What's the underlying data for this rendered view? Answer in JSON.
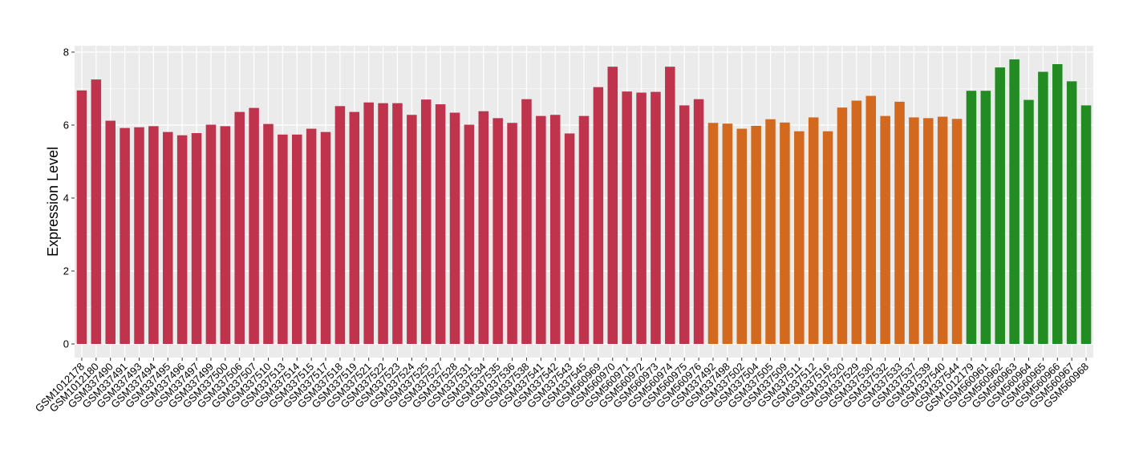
{
  "chart_data": {
    "type": "bar",
    "title": "",
    "xlabel": "",
    "ylabel": "Expression Level",
    "ylim": [
      0,
      8
    ],
    "yticks": [
      0,
      2,
      4,
      6,
      8
    ],
    "grid": true,
    "legend": "none",
    "series_colors": {
      "group1": "#c0334d",
      "group2": "#d2691e",
      "group3": "#228b22"
    },
    "categories": [
      "GSM1012178",
      "GSM1012180",
      "GSM337490",
      "GSM337491",
      "GSM337493",
      "GSM337494",
      "GSM337495",
      "GSM337496",
      "GSM337497",
      "GSM337499",
      "GSM337500",
      "GSM337506",
      "GSM337507",
      "GSM337510",
      "GSM337513",
      "GSM337514",
      "GSM337515",
      "GSM337517",
      "GSM337518",
      "GSM337519",
      "GSM337521",
      "GSM337522",
      "GSM337523",
      "GSM337524",
      "GSM337525",
      "GSM337527",
      "GSM337528",
      "GSM337531",
      "GSM337534",
      "GSM337535",
      "GSM337536",
      "GSM337538",
      "GSM337541",
      "GSM337542",
      "GSM337543",
      "GSM337545",
      "GSM560969",
      "GSM560970",
      "GSM560971",
      "GSM560972",
      "GSM560973",
      "GSM560974",
      "GSM560975",
      "GSM560976",
      "GSM337492",
      "GSM337498",
      "GSM337502",
      "GSM337504",
      "GSM337505",
      "GSM337509",
      "GSM337511",
      "GSM337512",
      "GSM337516",
      "GSM337520",
      "GSM337529",
      "GSM337530",
      "GSM337532",
      "GSM337533",
      "GSM337537",
      "GSM337539",
      "GSM337540",
      "GSM337544",
      "GSM1012179",
      "GSM560961",
      "GSM560962",
      "GSM560963",
      "GSM560964",
      "GSM560965",
      "GSM560966",
      "GSM560967",
      "GSM560968"
    ],
    "values": [
      6.95,
      7.25,
      6.12,
      5.92,
      5.94,
      5.97,
      5.81,
      5.72,
      5.78,
      6.01,
      5.97,
      6.36,
      6.47,
      6.03,
      5.74,
      5.74,
      5.9,
      5.81,
      6.52,
      6.36,
      6.62,
      6.6,
      6.6,
      6.28,
      6.7,
      6.57,
      6.34,
      6.01,
      6.38,
      6.19,
      6.06,
      6.71,
      6.25,
      6.28,
      5.77,
      6.25,
      7.04,
      7.6,
      6.92,
      6.89,
      6.91,
      7.6,
      6.54,
      6.71,
      6.06,
      6.04,
      5.9,
      5.98,
      6.16,
      6.07,
      5.83,
      6.21,
      5.83,
      6.48,
      6.67,
      6.8,
      6.25,
      6.64,
      6.21,
      6.19,
      6.23,
      6.17,
      6.94,
      6.94,
      7.58,
      7.8,
      6.69,
      7.46,
      7.67,
      7.2,
      6.54
    ],
    "groups": [
      0,
      0,
      0,
      0,
      0,
      0,
      0,
      0,
      0,
      0,
      0,
      0,
      0,
      0,
      0,
      0,
      0,
      0,
      0,
      0,
      0,
      0,
      0,
      0,
      0,
      0,
      0,
      0,
      0,
      0,
      0,
      0,
      0,
      0,
      0,
      0,
      0,
      0,
      0,
      0,
      0,
      0,
      0,
      0,
      1,
      1,
      1,
      1,
      1,
      1,
      1,
      1,
      1,
      1,
      1,
      1,
      1,
      1,
      1,
      1,
      1,
      1,
      2,
      2,
      2,
      2,
      2,
      2,
      2,
      2,
      2
    ],
    "group_colors": [
      "#c0334d",
      "#d2691e",
      "#228b22"
    ],
    "panel_background": "#ebebeb",
    "grid_color": "#ffffff"
  }
}
